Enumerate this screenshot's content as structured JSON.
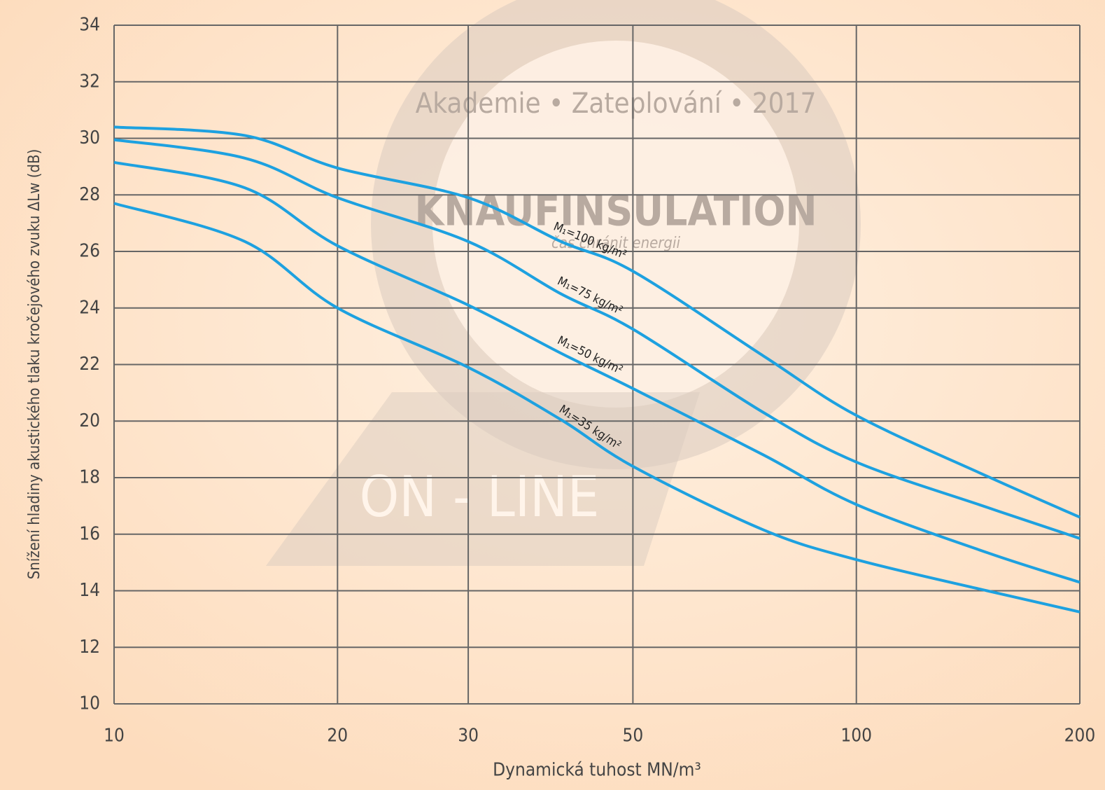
{
  "chart_data": {
    "type": "line",
    "y_label": "Snížení hladiny akustického tlaku kročejového zvuku ΔLw (dB)",
    "x_label": "Dynamická tuhost MN/m³",
    "x": [
      10,
      15,
      20,
      30,
      40,
      50,
      75,
      100,
      150,
      200
    ],
    "series": [
      {
        "name": "M₁=100 kg/m²",
        "color": "#1da1e0",
        "values": [
          30.4,
          30.1,
          28.95,
          27.9,
          26.35,
          25.3,
          22.3,
          20.2,
          18.05,
          16.6
        ]
      },
      {
        "name": "M₁=75 kg/m²",
        "color": "#1da1e0",
        "values": [
          29.95,
          29.3,
          27.9,
          26.35,
          24.5,
          23.25,
          20.3,
          18.55,
          16.95,
          15.85
        ]
      },
      {
        "name": "M₁=50 kg/m²",
        "color": "#1da1e0",
        "values": [
          29.15,
          28.25,
          26.2,
          24.1,
          22.4,
          21.15,
          18.8,
          17.05,
          15.35,
          14.3
        ]
      },
      {
        "name": "M₁=35 kg/m²",
        "color": "#1da1e0",
        "values": [
          27.7,
          26.35,
          24.0,
          21.9,
          20.05,
          18.4,
          16.15,
          15.1,
          14.0,
          13.25
        ]
      }
    ],
    "xscale": "log",
    "xlim": [
      10,
      200
    ],
    "xticks": [
      10,
      20,
      30,
      50,
      100,
      200
    ],
    "ylim": [
      10,
      34
    ],
    "yticks": [
      10,
      12,
      14,
      16,
      18,
      20,
      22,
      24,
      26,
      28,
      30,
      32,
      34
    ],
    "grid": true,
    "watermark": [
      "Akademie • Zateplování • 2017",
      "KNAUFINSULATION",
      "čas chránit energii",
      "ON - LINE"
    ]
  }
}
